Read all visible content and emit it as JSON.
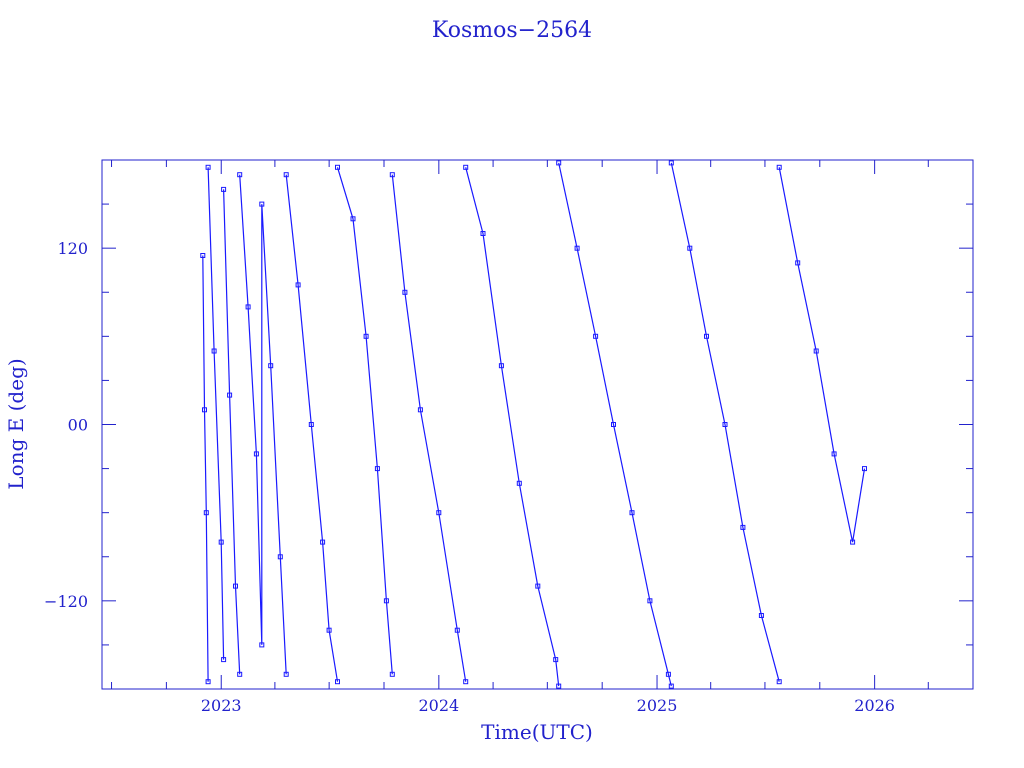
{
  "chart_data": {
    "type": "line",
    "title": "Kosmos−2564",
    "xlabel": "Time(UTC)",
    "ylabel": "Long E (deg)",
    "xlim": [
      "2022-06-15",
      "2026-06-15"
    ],
    "ylim": [
      -180,
      180
    ],
    "x_ticks": [
      "2023",
      "2024",
      "2025",
      "2026"
    ],
    "y_ticks": [
      "120",
      "00",
      "−120"
    ],
    "y_tick_values": [
      120,
      0,
      -120
    ],
    "grid": false,
    "series": [
      {
        "points": [
          [
            "2022-12-01",
            115
          ],
          [
            "2022-12-04",
            10
          ],
          [
            "2022-12-07",
            -60
          ],
          [
            "2022-12-10",
            -175
          ],
          [
            "2022-12-10",
            175
          ],
          [
            "2022-12-20",
            50
          ],
          [
            "2023-01-01",
            -80
          ],
          [
            "2023-01-05",
            -160
          ],
          [
            "2023-01-05",
            160
          ],
          [
            "2023-01-15",
            20
          ],
          [
            "2023-01-25",
            -110
          ],
          [
            "2023-02-01",
            -170
          ],
          [
            "2023-02-01",
            170
          ],
          [
            "2023-02-15",
            80
          ],
          [
            "2023-03-01",
            -20
          ],
          [
            "2023-03-10",
            -150
          ],
          [
            "2023-03-10",
            150
          ],
          [
            "2023-03-25",
            40
          ],
          [
            "2023-04-10",
            -90
          ],
          [
            "2023-04-20",
            -170
          ],
          [
            "2023-04-20",
            170
          ],
          [
            "2023-05-10",
            95
          ],
          [
            "2023-06-01",
            0
          ],
          [
            "2023-06-20",
            -80
          ],
          [
            "2023-07-01",
            -140
          ],
          [
            "2023-07-15",
            -175
          ],
          [
            "2023-07-15",
            175
          ],
          [
            "2023-08-10",
            140
          ],
          [
            "2023-09-01",
            60
          ],
          [
            "2023-09-20",
            -30
          ],
          [
            "2023-10-05",
            -120
          ],
          [
            "2023-10-15",
            -170
          ],
          [
            "2023-10-15",
            170
          ],
          [
            "2023-11-05",
            90
          ],
          [
            "2023-12-01",
            10
          ],
          [
            "2024-01-01",
            -60
          ],
          [
            "2024-02-01",
            -140
          ],
          [
            "2024-02-15",
            -175
          ],
          [
            "2024-02-15",
            175
          ],
          [
            "2024-03-15",
            130
          ],
          [
            "2024-04-15",
            40
          ],
          [
            "2024-05-15",
            -40
          ],
          [
            "2024-06-15",
            -110
          ],
          [
            "2024-07-15",
            -160
          ],
          [
            "2024-07-20",
            -178
          ],
          [
            "2024-07-20",
            178
          ],
          [
            "2024-08-20",
            120
          ],
          [
            "2024-09-20",
            60
          ],
          [
            "2024-10-20",
            0
          ],
          [
            "2024-11-20",
            -60
          ],
          [
            "2024-12-20",
            -120
          ],
          [
            "2025-01-20",
            -170
          ],
          [
            "2025-01-25",
            -178
          ],
          [
            "2025-01-25",
            178
          ],
          [
            "2025-02-25",
            120
          ],
          [
            "2025-03-25",
            60
          ],
          [
            "2025-04-25",
            0
          ],
          [
            "2025-05-25",
            -70
          ],
          [
            "2025-06-25",
            -130
          ],
          [
            "2025-07-25",
            -175
          ],
          [
            "2025-07-25",
            175
          ],
          [
            "2025-08-25",
            110
          ],
          [
            "2025-09-25",
            50
          ],
          [
            "2025-10-25",
            -20
          ],
          [
            "2025-11-25",
            -80
          ],
          [
            "2025-12-15",
            -30
          ]
        ]
      }
    ]
  }
}
